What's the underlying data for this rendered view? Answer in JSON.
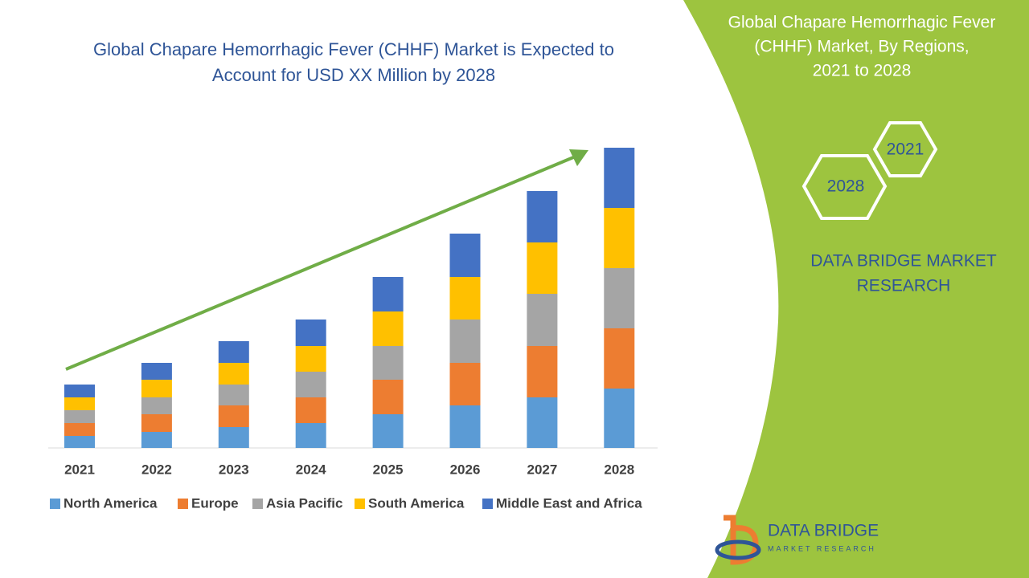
{
  "chart_data": {
    "type": "stacked_bar",
    "title": "Global Chapare Hemorrhagic Fever (CHHF) Market is Expected to Account for USD XX Million by 2028",
    "categories": [
      "2021",
      "2022",
      "2023",
      "2024",
      "2025",
      "2026",
      "2027",
      "2028"
    ],
    "series": [
      {
        "name": "North America",
        "color": "#5b9bd5",
        "values": [
          15,
          20,
          26,
          31,
          42,
          53,
          63,
          74
        ]
      },
      {
        "name": "Europe",
        "color": "#ed7d31",
        "values": [
          16,
          22,
          27,
          32,
          43,
          53,
          64,
          75
        ]
      },
      {
        "name": "Asia Pacific",
        "color": "#a5a5a5",
        "values": [
          16,
          21,
          26,
          32,
          42,
          54,
          65,
          75
        ]
      },
      {
        "name": "South America",
        "color": "#ffc000",
        "values": [
          16,
          22,
          27,
          32,
          43,
          53,
          64,
          75
        ]
      },
      {
        "name": "Middle East and Africa",
        "color": "#4472c4",
        "values": [
          16,
          21,
          27,
          33,
          43,
          54,
          64,
          75
        ]
      }
    ],
    "ylim": [
      0,
      400
    ],
    "legend": "bottom"
  },
  "panel": {
    "title_lines": [
      "Global Chapare Hemorrhagic Fever",
      "(CHHF) Market, By Regions,",
      "2021 to 2028"
    ],
    "hex_labels": [
      "2021",
      "2028"
    ],
    "brand_lines": [
      "DATA BRIDGE MARKET",
      "RESEARCH"
    ],
    "logo": {
      "name": "DATA BRIDGE",
      "tagline": "MARKET RESEARCH"
    }
  }
}
